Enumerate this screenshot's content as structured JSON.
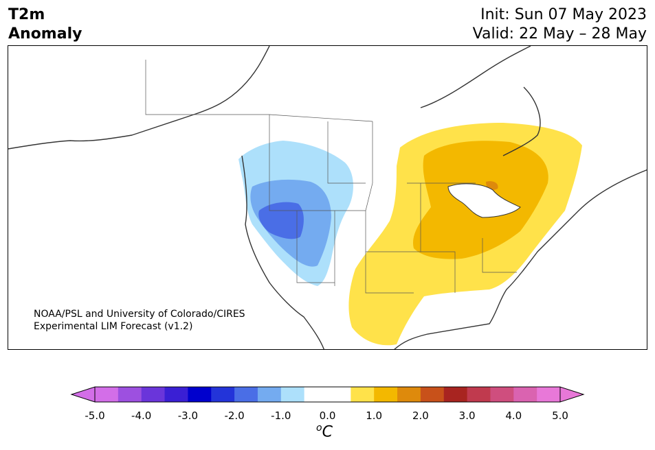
{
  "header": {
    "title_line1": "T2m",
    "title_line2": "Anomaly",
    "init": "Init: Sun 07 May 2023",
    "valid": "Valid: 22 May – 28 May"
  },
  "credit": {
    "line1": "NOAA/PSL and University of Colorado/CIRES",
    "line2": "Experimental LIM Forecast (v1.2)"
  },
  "colorbar": {
    "units_symbol": "o",
    "units_letter": "C",
    "ticks": [
      "-5.0",
      "-4.0",
      "-3.0",
      "-2.0",
      "-1.0",
      "0.0",
      "1.0",
      "2.0",
      "3.0",
      "4.0",
      "5.0"
    ],
    "colors": [
      "#d36ee8",
      "#9d50e0",
      "#6a35da",
      "#3a1fd4",
      "#0000cd",
      "#2334d9",
      "#4a6ee6",
      "#74abf0",
      "#ade0fb",
      "#ffffff",
      "#ffffff",
      "#ffe24a",
      "#f3b800",
      "#de8a0c",
      "#c8511a",
      "#a82420",
      "#c03a4e",
      "#cf4e7e",
      "#da63b0",
      "#e878d8"
    ],
    "extend_low": "#d36ee8",
    "extend_high": "#e878d8"
  },
  "map": {
    "colors": {
      "blue_light": "#ade0fb",
      "blue_mid": "#74abf0",
      "blue_dark": "#4a6ee6",
      "yellow": "#ffe24a",
      "orange": "#f3b800",
      "dark_orange": "#de8a0c",
      "coast": "#333333"
    }
  }
}
